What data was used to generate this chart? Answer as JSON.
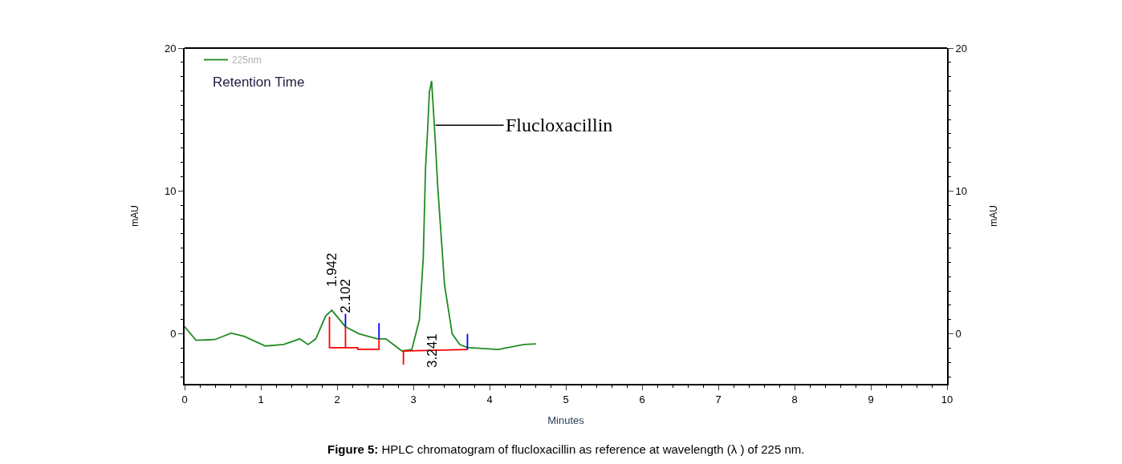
{
  "chart_data": {
    "type": "line",
    "title": "Figure 5: HPLC chromatogram of flucloxacillin as reference at wavelength (λ ) of 225 nm.",
    "xlabel": "Minutes",
    "ylabel": "mAU",
    "y2label": "mAU",
    "series": [
      {
        "name": "225nm",
        "color": "#228b22",
        "x": [
          0,
          0.15,
          0.4,
          0.61,
          0.78,
          1.06,
          1.3,
          1.51,
          1.62,
          1.72,
          1.85,
          1.93,
          2.11,
          2.29,
          2.53,
          2.64,
          2.74,
          2.85,
          2.98,
          3.08,
          3.13,
          3.16,
          3.19,
          3.21,
          3.24,
          3.29,
          3.32,
          3.41,
          3.51,
          3.61,
          3.71,
          4.11,
          4.45,
          4.61
        ],
        "values": [
          0.5,
          -0.45,
          -0.4,
          0.05,
          -0.17,
          -0.85,
          -0.75,
          -0.35,
          -0.75,
          -0.35,
          1.25,
          1.65,
          0.5,
          0,
          -0.35,
          -0.35,
          -0.75,
          -1.2,
          -1.1,
          1.0,
          5.3,
          11.6,
          14.5,
          16.9,
          17.7,
          13.3,
          10.3,
          3.4,
          0,
          -0.75,
          -0.95,
          -1.1,
          -0.75,
          -0.7
        ]
      },
      {
        "type": "line",
        "color": "#ff0000",
        "x": [
          1.9,
          1.9,
          2.11,
          2.11,
          2.11,
          null,
          2.11,
          2.27,
          2.27,
          2.55,
          2.55,
          null,
          2.87,
          2.87,
          2.87,
          3.71
        ],
        "values": [
          1.2,
          -0.97,
          -0.97,
          0.5,
          -0.97,
          null,
          -0.97,
          -0.97,
          -1.08,
          -1.08,
          -0.35,
          null,
          -2.15,
          -1.2,
          -1.2,
          -1.1
        ]
      },
      {
        "type": "line",
        "color": "#0000ff",
        "x": [
          2.11,
          2.11,
          null,
          2.55,
          2.55,
          null,
          3.71,
          3.71
        ],
        "values": [
          1.4,
          0.5,
          null,
          0.75,
          -0.35,
          null,
          0,
          -1.1
        ]
      }
    ],
    "annotations": [
      "Retention Time",
      {
        "text": "1.942",
        "x": 1.93,
        "y": 1.65
      },
      {
        "text": "2.102",
        "x": 2.11,
        "y": 0.5
      },
      {
        "text": "3.241",
        "x": 3.24,
        "y": -1.15
      },
      {
        "text": "Flucloxacillin",
        "x": 3.29,
        "y": 14.6
      }
    ],
    "xlim": [
      0,
      10
    ],
    "xticks": [
      0,
      1,
      2,
      3,
      4,
      5,
      6,
      7,
      8,
      9,
      10
    ],
    "ylim": [
      -3.5,
      20
    ],
    "yticks": [
      0,
      10,
      20
    ],
    "y2lim": [
      -3.5,
      20
    ],
    "y2ticks": [
      0,
      10,
      20
    ],
    "legend": "top left",
    "line_style": "solid",
    "marker": "none"
  }
}
